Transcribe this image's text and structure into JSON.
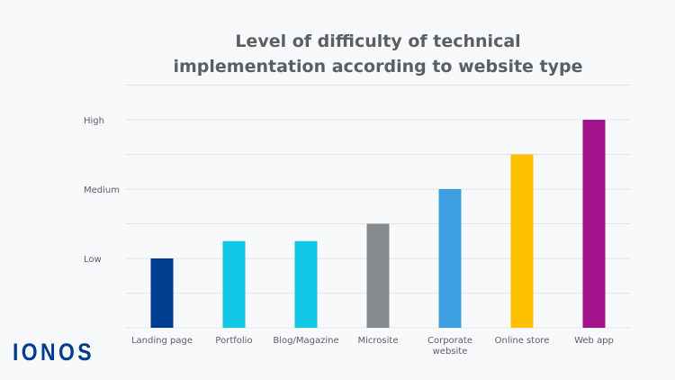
{
  "chart_data": {
    "type": "bar",
    "title_lines": [
      "Level of difficulty of technical",
      "implementation according to website type"
    ],
    "categories": [
      "Landing page",
      "Portfolio",
      "Blog/Magazine",
      "Microsite",
      "Corporate website",
      "Online store",
      "Web app"
    ],
    "category_label_lines": [
      [
        "Landing page"
      ],
      [
        "Portfolio"
      ],
      [
        "Blog/Magazine"
      ],
      [
        "Microsite"
      ],
      [
        "Corporate",
        "website"
      ],
      [
        "Online store"
      ],
      [
        "Web app"
      ]
    ],
    "values": [
      1,
      1.25,
      1.25,
      1.5,
      2,
      2.5,
      3
    ],
    "colors": [
      "#003d8f",
      "#11c7e6",
      "#11c7e6",
      "#868a8c",
      "#3d9fdf",
      "#ffc000",
      "#a3148c"
    ],
    "yticks": [
      {
        "value": 1,
        "label": "Low"
      },
      {
        "value": 2,
        "label": "Medium"
      },
      {
        "value": 3,
        "label": "High"
      }
    ],
    "ylim": [
      0,
      3.5
    ],
    "grid": true,
    "xlabel": "",
    "ylabel": ""
  },
  "brand": {
    "logo_text": "IONOS",
    "color": "#003d8f"
  }
}
